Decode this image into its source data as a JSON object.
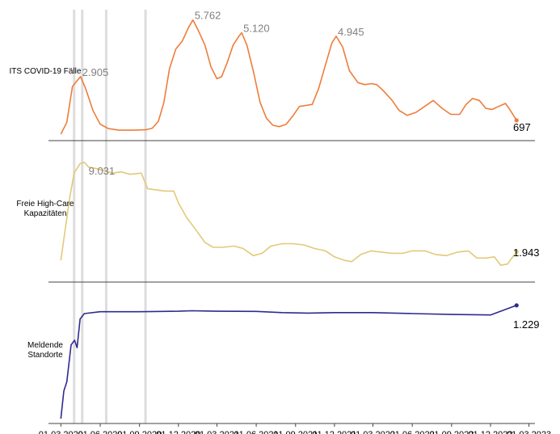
{
  "chart_data": {
    "type": "line",
    "x_axis": {
      "ticks": [
        "01.03.2020",
        "01.06.2020",
        "01.09.2020",
        "01.12.2020",
        "01.03.2021",
        "01.06.2021",
        "01.09.2021",
        "01.12.2021",
        "01.03.2022",
        "01.06.2022",
        "01.09.2022",
        "01.12.2022",
        "01.03.2023"
      ],
      "range": [
        "2020-02-01",
        "2023-03-15"
      ]
    },
    "reference_lines": [
      "2020-04-01",
      "2020-04-20",
      "2020-06-15",
      "2020-09-15"
    ],
    "panels": [
      {
        "label": "ITS COVID-19 Fälle",
        "color": "#ee7d3b",
        "ylim": [
          0,
          6200
        ],
        "series": [
          {
            "x": "2020-03-01",
            "y": 0
          },
          {
            "x": "2020-03-15",
            "y": 600
          },
          {
            "x": "2020-03-28",
            "y": 2400
          },
          {
            "x": "2020-04-08",
            "y": 2700
          },
          {
            "x": "2020-04-16",
            "y": 2905
          },
          {
            "x": "2020-04-28",
            "y": 2300
          },
          {
            "x": "2020-05-15",
            "y": 1200
          },
          {
            "x": "2020-06-01",
            "y": 500
          },
          {
            "x": "2020-06-20",
            "y": 280
          },
          {
            "x": "2020-07-15",
            "y": 200
          },
          {
            "x": "2020-08-15",
            "y": 200
          },
          {
            "x": "2020-09-15",
            "y": 220
          },
          {
            "x": "2020-10-01",
            "y": 300
          },
          {
            "x": "2020-10-15",
            "y": 650
          },
          {
            "x": "2020-10-28",
            "y": 1600
          },
          {
            "x": "2020-11-10",
            "y": 3300
          },
          {
            "x": "2020-11-25",
            "y": 4300
          },
          {
            "x": "2020-12-10",
            "y": 4700
          },
          {
            "x": "2020-12-25",
            "y": 5400
          },
          {
            "x": "2021-01-04",
            "y": 5762
          },
          {
            "x": "2021-01-15",
            "y": 5300
          },
          {
            "x": "2021-02-01",
            "y": 4500
          },
          {
            "x": "2021-02-15",
            "y": 3400
          },
          {
            "x": "2021-03-01",
            "y": 2800
          },
          {
            "x": "2021-03-12",
            "y": 2900
          },
          {
            "x": "2021-03-25",
            "y": 3600
          },
          {
            "x": "2021-04-08",
            "y": 4500
          },
          {
            "x": "2021-04-20",
            "y": 4900
          },
          {
            "x": "2021-04-28",
            "y": 5120
          },
          {
            "x": "2021-05-10",
            "y": 4500
          },
          {
            "x": "2021-05-25",
            "y": 3200
          },
          {
            "x": "2021-06-10",
            "y": 1600
          },
          {
            "x": "2021-06-25",
            "y": 800
          },
          {
            "x": "2021-07-10",
            "y": 450
          },
          {
            "x": "2021-07-25",
            "y": 380
          },
          {
            "x": "2021-08-10",
            "y": 500
          },
          {
            "x": "2021-08-25",
            "y": 900
          },
          {
            "x": "2021-09-10",
            "y": 1400
          },
          {
            "x": "2021-09-25",
            "y": 1450
          },
          {
            "x": "2021-10-10",
            "y": 1500
          },
          {
            "x": "2021-10-25",
            "y": 2300
          },
          {
            "x": "2021-11-10",
            "y": 3500
          },
          {
            "x": "2021-11-25",
            "y": 4600
          },
          {
            "x": "2021-12-05",
            "y": 4945
          },
          {
            "x": "2021-12-20",
            "y": 4400
          },
          {
            "x": "2022-01-05",
            "y": 3200
          },
          {
            "x": "2022-01-25",
            "y": 2600
          },
          {
            "x": "2022-02-10",
            "y": 2500
          },
          {
            "x": "2022-02-25",
            "y": 2550
          },
          {
            "x": "2022-03-10",
            "y": 2500
          },
          {
            "x": "2022-03-25",
            "y": 2200
          },
          {
            "x": "2022-04-15",
            "y": 1700
          },
          {
            "x": "2022-05-01",
            "y": 1200
          },
          {
            "x": "2022-05-20",
            "y": 950
          },
          {
            "x": "2022-06-10",
            "y": 1100
          },
          {
            "x": "2022-06-30",
            "y": 1400
          },
          {
            "x": "2022-07-20",
            "y": 1700
          },
          {
            "x": "2022-08-10",
            "y": 1300
          },
          {
            "x": "2022-08-30",
            "y": 1000
          },
          {
            "x": "2022-09-20",
            "y": 1000
          },
          {
            "x": "2022-10-05",
            "y": 1500
          },
          {
            "x": "2022-10-20",
            "y": 1800
          },
          {
            "x": "2022-11-05",
            "y": 1700
          },
          {
            "x": "2022-11-20",
            "y": 1300
          },
          {
            "x": "2022-12-05",
            "y": 1250
          },
          {
            "x": "2022-12-20",
            "y": 1400
          },
          {
            "x": "2023-01-05",
            "y": 1550
          },
          {
            "x": "2023-01-15",
            "y": 1250
          },
          {
            "x": "2023-01-31",
            "y": 697
          }
        ],
        "annotations": [
          {
            "text": "2.905",
            "x": "2020-04-16",
            "y": 2905
          },
          {
            "text": "5.762",
            "x": "2021-01-04",
            "y": 5762
          },
          {
            "text": "5.120",
            "x": "2021-04-28",
            "y": 5120
          },
          {
            "text": "4.945",
            "x": "2021-12-05",
            "y": 4945
          }
        ],
        "end_label": "697"
      },
      {
        "label": "Freie High-Care\nKapazitäten",
        "color": "#e2c97a",
        "ylim": [
          0,
          10000
        ],
        "series": [
          {
            "x": "2020-03-01",
            "y": 1200
          },
          {
            "x": "2020-03-10",
            "y": 3500
          },
          {
            "x": "2020-03-22",
            "y": 6500
          },
          {
            "x": "2020-04-01",
            "y": 8500
          },
          {
            "x": "2020-04-15",
            "y": 9300
          },
          {
            "x": "2020-04-25",
            "y": 9400
          },
          {
            "x": "2020-05-05",
            "y": 9000
          },
          {
            "x": "2020-05-20",
            "y": 8900
          },
          {
            "x": "2020-06-10",
            "y": 8700
          },
          {
            "x": "2020-07-01",
            "y": 8500
          },
          {
            "x": "2020-07-20",
            "y": 8600
          },
          {
            "x": "2020-08-10",
            "y": 8400
          },
          {
            "x": "2020-09-05",
            "y": 8500
          },
          {
            "x": "2020-09-20",
            "y": 7200
          },
          {
            "x": "2020-10-10",
            "y": 7100
          },
          {
            "x": "2020-10-30",
            "y": 7000
          },
          {
            "x": "2020-11-20",
            "y": 7000
          },
          {
            "x": "2020-12-01",
            "y": 6000
          },
          {
            "x": "2020-12-20",
            "y": 4800
          },
          {
            "x": "2021-01-10",
            "y": 3800
          },
          {
            "x": "2021-02-01",
            "y": 2700
          },
          {
            "x": "2021-02-20",
            "y": 2300
          },
          {
            "x": "2021-03-15",
            "y": 2300
          },
          {
            "x": "2021-04-10",
            "y": 2400
          },
          {
            "x": "2021-05-01",
            "y": 2200
          },
          {
            "x": "2021-05-25",
            "y": 1600
          },
          {
            "x": "2021-06-15",
            "y": 1800
          },
          {
            "x": "2021-07-05",
            "y": 2400
          },
          {
            "x": "2021-08-01",
            "y": 2600
          },
          {
            "x": "2021-08-25",
            "y": 2600
          },
          {
            "x": "2021-09-20",
            "y": 2500
          },
          {
            "x": "2021-10-15",
            "y": 2200
          },
          {
            "x": "2021-11-10",
            "y": 2000
          },
          {
            "x": "2021-12-01",
            "y": 1500
          },
          {
            "x": "2021-12-25",
            "y": 1200
          },
          {
            "x": "2022-01-10",
            "y": 1100
          },
          {
            "x": "2022-02-01",
            "y": 1700
          },
          {
            "x": "2022-02-25",
            "y": 2000
          },
          {
            "x": "2022-03-20",
            "y": 1900
          },
          {
            "x": "2022-04-15",
            "y": 1800
          },
          {
            "x": "2022-05-10",
            "y": 1800
          },
          {
            "x": "2022-06-01",
            "y": 2000
          },
          {
            "x": "2022-07-01",
            "y": 2000
          },
          {
            "x": "2022-07-25",
            "y": 1700
          },
          {
            "x": "2022-08-20",
            "y": 1600
          },
          {
            "x": "2022-09-15",
            "y": 1900
          },
          {
            "x": "2022-10-10",
            "y": 2000
          },
          {
            "x": "2022-10-30",
            "y": 1400
          },
          {
            "x": "2022-11-20",
            "y": 1400
          },
          {
            "x": "2022-12-10",
            "y": 1500
          },
          {
            "x": "2022-12-25",
            "y": 800
          },
          {
            "x": "2023-01-10",
            "y": 900
          },
          {
            "x": "2023-01-31",
            "y": 1943
          }
        ],
        "annotations": [
          {
            "text": "9.031",
            "x": "2020-05-01",
            "y": 8300
          }
        ],
        "end_label": "1.943"
      },
      {
        "label": "Meldende\nStandorte",
        "color": "#2f2a8f",
        "ylim": [
          0,
          1350
        ],
        "series": [
          {
            "x": "2020-03-01",
            "y": 0
          },
          {
            "x": "2020-03-08",
            "y": 300
          },
          {
            "x": "2020-03-15",
            "y": 400
          },
          {
            "x": "2020-03-25",
            "y": 800
          },
          {
            "x": "2020-04-02",
            "y": 850
          },
          {
            "x": "2020-04-08",
            "y": 770
          },
          {
            "x": "2020-04-15",
            "y": 1080
          },
          {
            "x": "2020-04-25",
            "y": 1140
          },
          {
            "x": "2020-06-01",
            "y": 1160
          },
          {
            "x": "2020-09-01",
            "y": 1160
          },
          {
            "x": "2020-12-01",
            "y": 1165
          },
          {
            "x": "2021-01-01",
            "y": 1170
          },
          {
            "x": "2021-03-01",
            "y": 1165
          },
          {
            "x": "2021-06-01",
            "y": 1163
          },
          {
            "x": "2021-08-01",
            "y": 1150
          },
          {
            "x": "2021-10-01",
            "y": 1145
          },
          {
            "x": "2021-12-01",
            "y": 1150
          },
          {
            "x": "2022-03-01",
            "y": 1150
          },
          {
            "x": "2022-06-01",
            "y": 1140
          },
          {
            "x": "2022-09-01",
            "y": 1130
          },
          {
            "x": "2022-12-01",
            "y": 1125
          },
          {
            "x": "2023-01-31",
            "y": 1229
          }
        ],
        "annotations": [],
        "end_label": "1.229"
      }
    ]
  }
}
